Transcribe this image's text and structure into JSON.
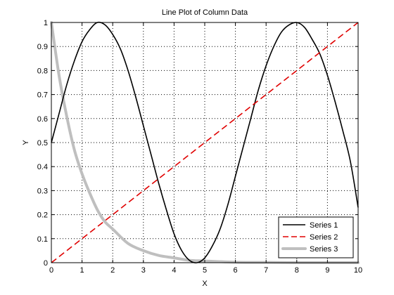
{
  "chart_data": {
    "type": "line",
    "title": "Line Plot of Column Data",
    "xlabel": "X",
    "ylabel": "Y",
    "xlim": [
      0,
      10
    ],
    "ylim": [
      0,
      1
    ],
    "xticks": [
      "0",
      "1",
      "2",
      "3",
      "4",
      "5",
      "6",
      "7",
      "8",
      "9",
      "10"
    ],
    "yticks": [
      "0",
      "0.1",
      "0.2",
      "0.3",
      "0.4",
      "0.5",
      "0.6",
      "0.7",
      "0.8",
      "0.9",
      "1"
    ],
    "grid": true,
    "legend_position": "bottom-right",
    "series": [
      {
        "name": "Series 1",
        "color": "#000000",
        "style": "solid",
        "x": [
          0,
          0.25,
          0.5,
          0.75,
          1,
          1.25,
          1.5,
          1.75,
          2,
          2.25,
          2.5,
          2.75,
          3,
          3.25,
          3.5,
          3.75,
          4,
          4.25,
          4.5,
          4.75,
          5,
          5.25,
          5.5,
          5.75,
          6,
          6.25,
          6.5,
          6.75,
          7,
          7.25,
          7.5,
          7.75,
          8,
          8.25,
          8.5,
          8.75,
          9,
          9.25,
          9.5,
          9.75,
          10
        ],
        "values": [
          0.5,
          0.62,
          0.74,
          0.84,
          0.92,
          0.97,
          1.0,
          0.99,
          0.95,
          0.89,
          0.8,
          0.69,
          0.57,
          0.45,
          0.33,
          0.22,
          0.12,
          0.05,
          0.01,
          0.0,
          0.02,
          0.07,
          0.14,
          0.24,
          0.36,
          0.48,
          0.6,
          0.72,
          0.82,
          0.9,
          0.96,
          0.99,
          1.0,
          0.98,
          0.93,
          0.87,
          0.78,
          0.67,
          0.55,
          0.42,
          0.23
        ]
      },
      {
        "name": "Series 2",
        "color": "#e00000",
        "style": "dashed",
        "x": [
          0,
          10
        ],
        "values": [
          0,
          1
        ]
      },
      {
        "name": "Series 3",
        "color": "#bfbfbf",
        "style": "solid-thick",
        "x": [
          0,
          0.25,
          0.5,
          0.75,
          1,
          1.25,
          1.5,
          1.75,
          2,
          2.5,
          3,
          3.5,
          4,
          4.5,
          5,
          6,
          7,
          8,
          9,
          10
        ],
        "values": [
          1.0,
          0.78,
          0.61,
          0.47,
          0.37,
          0.29,
          0.22,
          0.17,
          0.14,
          0.08,
          0.05,
          0.03,
          0.02,
          0.01,
          0.007,
          0.002,
          0.001,
          0.0,
          0.0,
          0.0
        ]
      }
    ]
  }
}
